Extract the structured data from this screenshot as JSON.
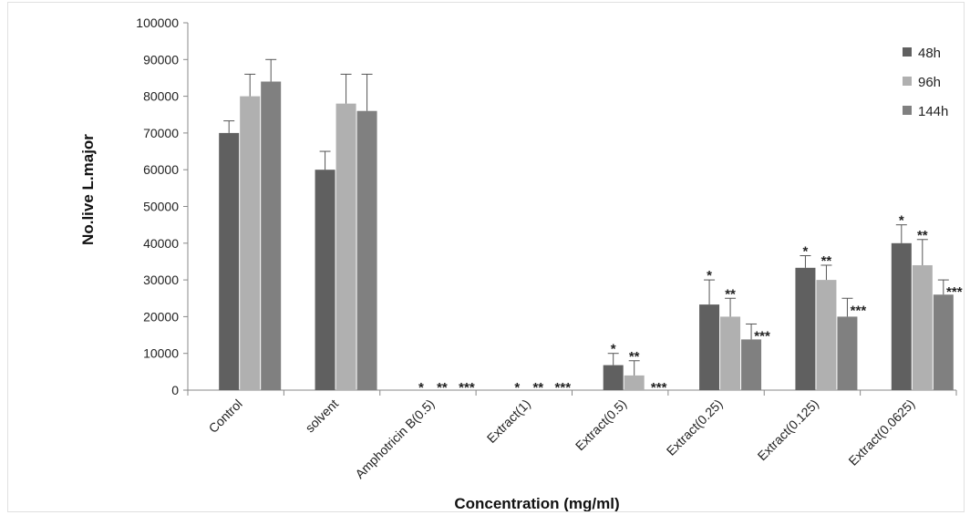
{
  "chart_data": {
    "type": "bar",
    "title": "",
    "xlabel": "Concentration (mg/ml)",
    "ylabel": "No.live L.major",
    "ylim": [
      0,
      100000
    ],
    "yticks": [
      0,
      10000,
      20000,
      30000,
      40000,
      50000,
      60000,
      70000,
      80000,
      90000,
      100000
    ],
    "categories": [
      "Control",
      "solvent",
      "Amphotricin B(0.5)",
      "Extract(1)",
      "Extract(0.5)",
      "Extract(0.25)",
      "Extract(0.125)",
      "Extract(0.0625)"
    ],
    "series": [
      {
        "name": "48h",
        "color": "#606060",
        "values": [
          70000,
          60000,
          0,
          0,
          6800,
          23300,
          33300,
          40000
        ],
        "errors": [
          3300,
          5000,
          0,
          0,
          3200,
          6700,
          3300,
          5000
        ],
        "significance": [
          "",
          "",
          "*",
          "*",
          "*",
          "*",
          "*",
          "*"
        ]
      },
      {
        "name": "96h",
        "color": "#b0b0b0",
        "values": [
          80000,
          78000,
          0,
          0,
          4000,
          20000,
          30000,
          34000
        ],
        "errors": [
          6000,
          8000,
          0,
          0,
          4000,
          5000,
          4000,
          7000
        ],
        "significance": [
          "",
          "",
          "**",
          "**",
          "**",
          "**",
          "**",
          "**"
        ]
      },
      {
        "name": "144h",
        "color": "#808080",
        "values": [
          84000,
          76000,
          0,
          0,
          0,
          13800,
          20000,
          26000
        ],
        "errors": [
          6000,
          10000,
          0,
          0,
          0,
          4200,
          5000,
          4000
        ],
        "significance": [
          "",
          "",
          "***",
          "***",
          "***",
          "***",
          "***",
          "***"
        ]
      }
    ],
    "legend_position": "top-right",
    "grid": false
  }
}
